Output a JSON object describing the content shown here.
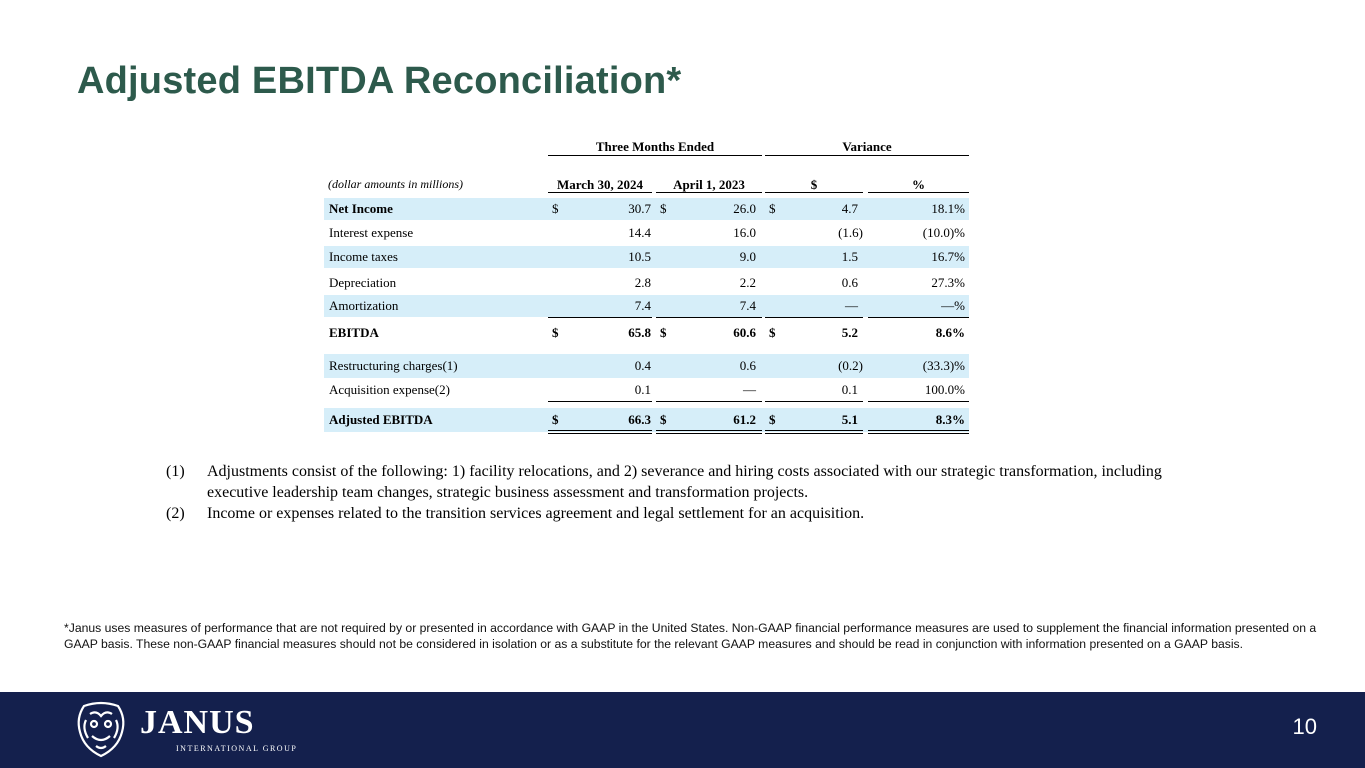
{
  "title": "Adjusted EBITDA Reconciliation*",
  "table": {
    "group_headers": {
      "three_months": "Three Months Ended",
      "variance": "Variance"
    },
    "units_label": "(dollar amounts in millions)",
    "columns": {
      "col1": "March 30, 2024",
      "col2": "April 1, 2023",
      "col3": "$",
      "col4": "%"
    },
    "currency": "$",
    "rows": [
      {
        "label": "Net Income",
        "c1": "30.7",
        "c2": "26.0",
        "c3": "4.7",
        "c4": "18.1%"
      },
      {
        "label": "Interest expense",
        "c1": "14.4",
        "c2": "16.0",
        "c3": "(1.6)",
        "c4": "(10.0)%"
      },
      {
        "label": "Income taxes",
        "c1": "10.5",
        "c2": "9.0",
        "c3": "1.5",
        "c4": "16.7%"
      },
      {
        "label": "Depreciation",
        "c1": "2.8",
        "c2": "2.2",
        "c3": "0.6",
        "c4": "27.3%"
      },
      {
        "label": "Amortization",
        "c1": "7.4",
        "c2": "7.4",
        "c3": "—",
        "c4": "—%"
      },
      {
        "label": "EBITDA",
        "c1": "65.8",
        "c2": "60.6",
        "c3": "5.2",
        "c4": "8.6%"
      },
      {
        "label": "Restructuring charges(1)",
        "c1": "0.4",
        "c2": "0.6",
        "c3": "(0.2)",
        "c4": "(33.3)%"
      },
      {
        "label": "Acquisition expense(2)",
        "c1": "0.1",
        "c2": "—",
        "c3": "0.1",
        "c4": "100.0%"
      },
      {
        "label": "Adjusted EBITDA",
        "c1": "66.3",
        "c2": "61.2",
        "c3": "5.1",
        "c4": "8.3%"
      }
    ]
  },
  "footnotes": [
    {
      "num": "(1)",
      "text": "Adjustments consist of the following: 1) facility relocations, and 2) severance and hiring costs associated with our strategic transformation, including executive leadership team changes, strategic business assessment and transformation projects."
    },
    {
      "num": "(2)",
      "text": "Income or expenses related to the transition services agreement and legal settlement for an acquisition."
    }
  ],
  "disclaimer": "*Janus uses measures of performance that are not required by or presented in accordance with GAAP in the United States. Non-GAAP financial performance measures are used to supplement the financial information presented on a GAAP basis. These non-GAAP financial measures should not be considered in isolation or as a substitute for the relevant GAAP measures and should be read in conjunction with information presented on a GAAP basis.",
  "footer": {
    "logo_word": "JANUS",
    "logo_sub": "INTERNATIONAL GROUP",
    "page_number": "10",
    "background": "#14204d"
  },
  "colors": {
    "title": "#2d5a4c",
    "row_shade": "#d6eef9"
  }
}
